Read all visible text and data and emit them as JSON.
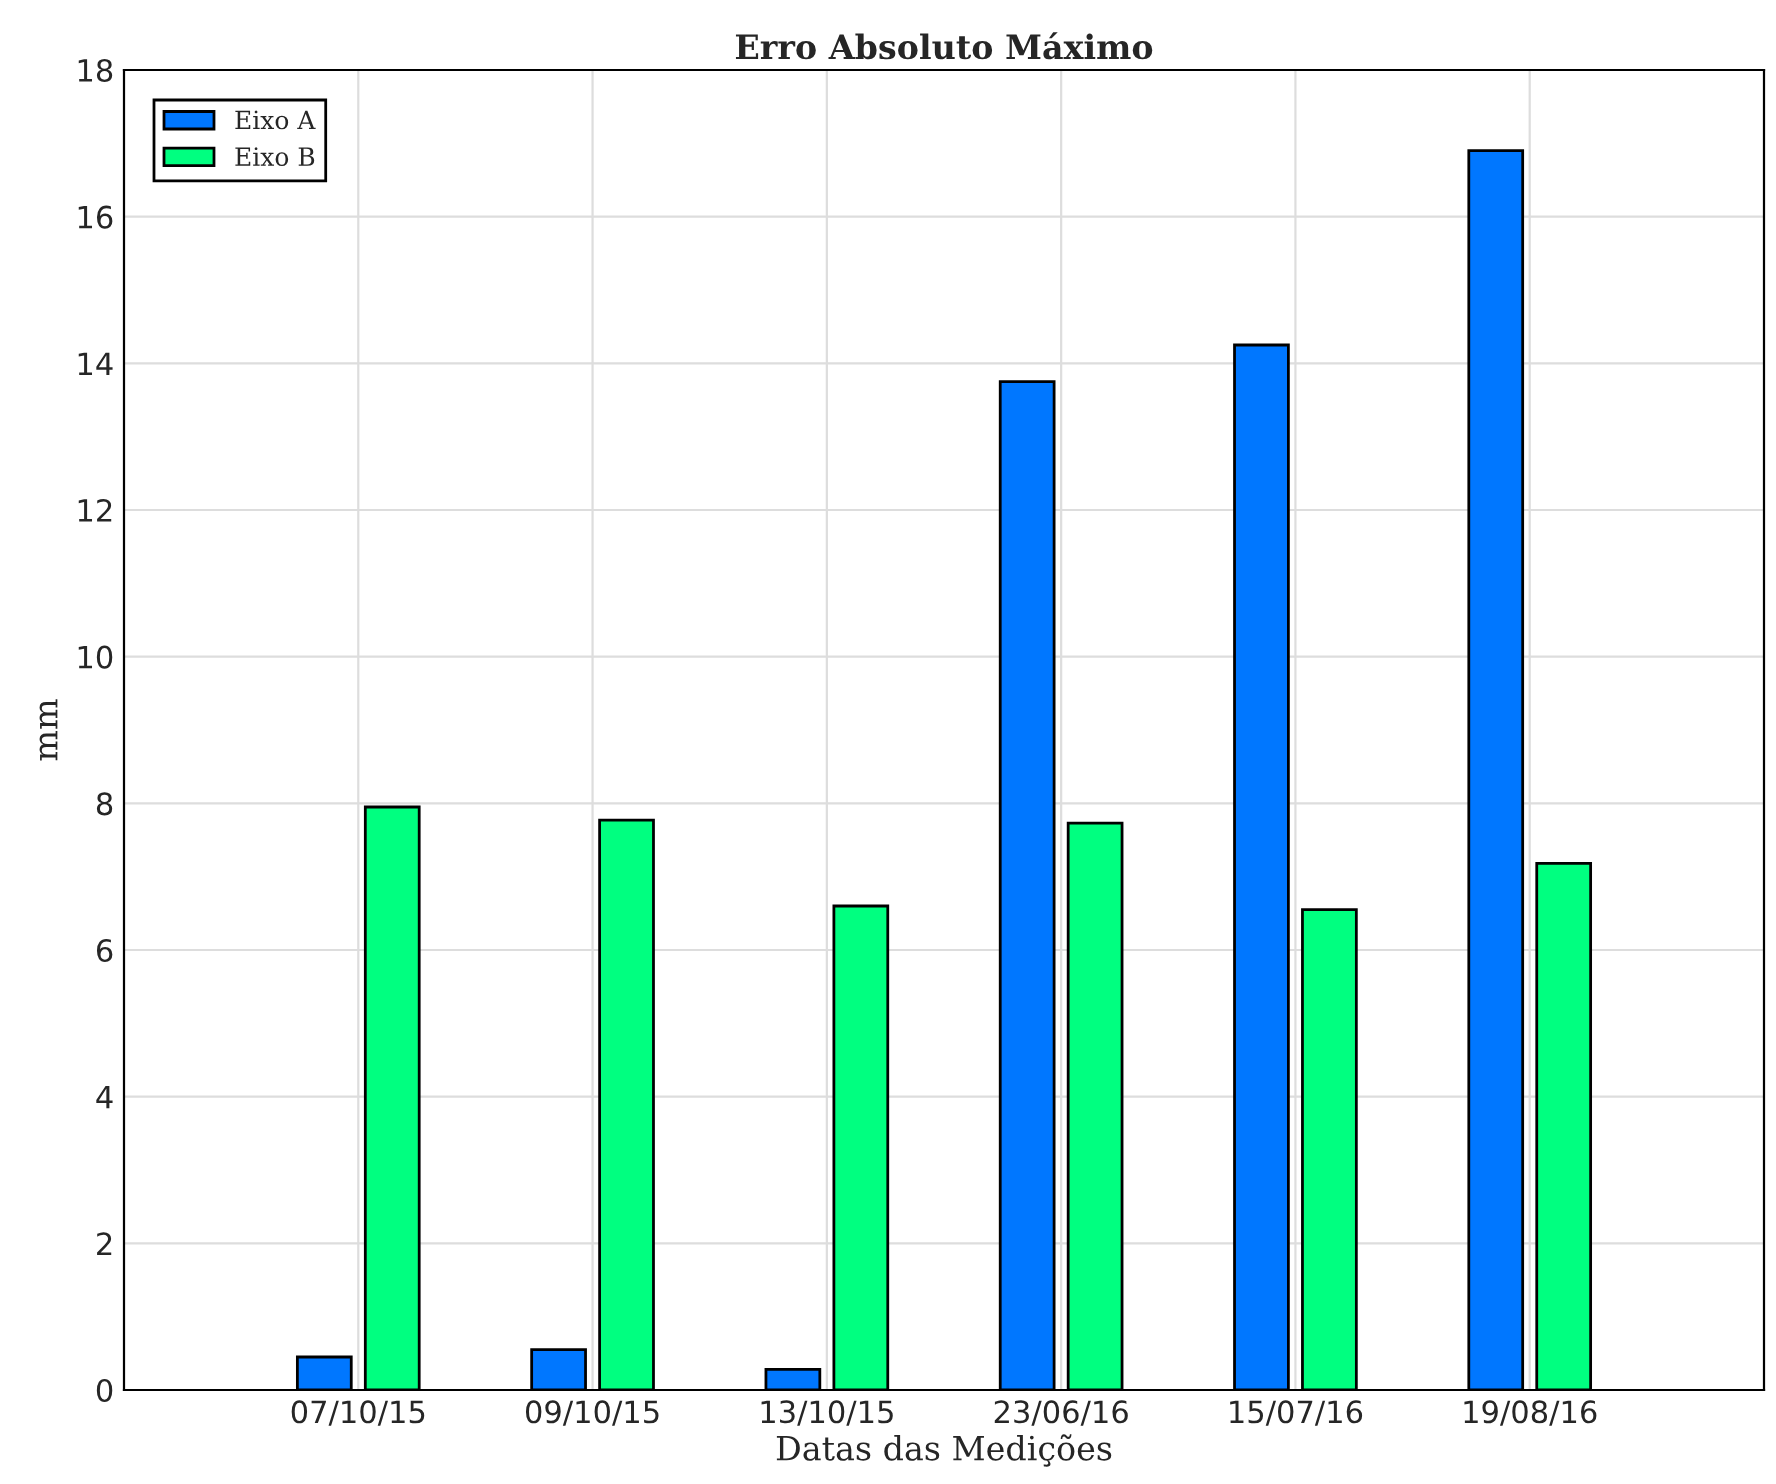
{
  "chart_data": {
    "type": "bar",
    "title": "Erro Absoluto Máximo",
    "xlabel": "Datas das Medições",
    "ylabel": "mm",
    "categories": [
      "07/10/15",
      "09/10/15",
      "13/10/15",
      "23/06/16",
      "15/07/16",
      "19/08/16"
    ],
    "series": [
      {
        "name": "Eixo A",
        "color": "#0077ff",
        "values": [
          0.45,
          0.55,
          0.28,
          13.75,
          14.25,
          16.9
        ]
      },
      {
        "name": "Eixo B",
        "color": "#00ff80",
        "values": [
          7.95,
          7.77,
          6.6,
          7.73,
          6.55,
          7.18
        ]
      }
    ],
    "ylim": [
      0,
      18
    ],
    "yticks": [
      0,
      2,
      4,
      6,
      8,
      10,
      12,
      14,
      16,
      18
    ],
    "grid": true,
    "legend": "top left"
  }
}
